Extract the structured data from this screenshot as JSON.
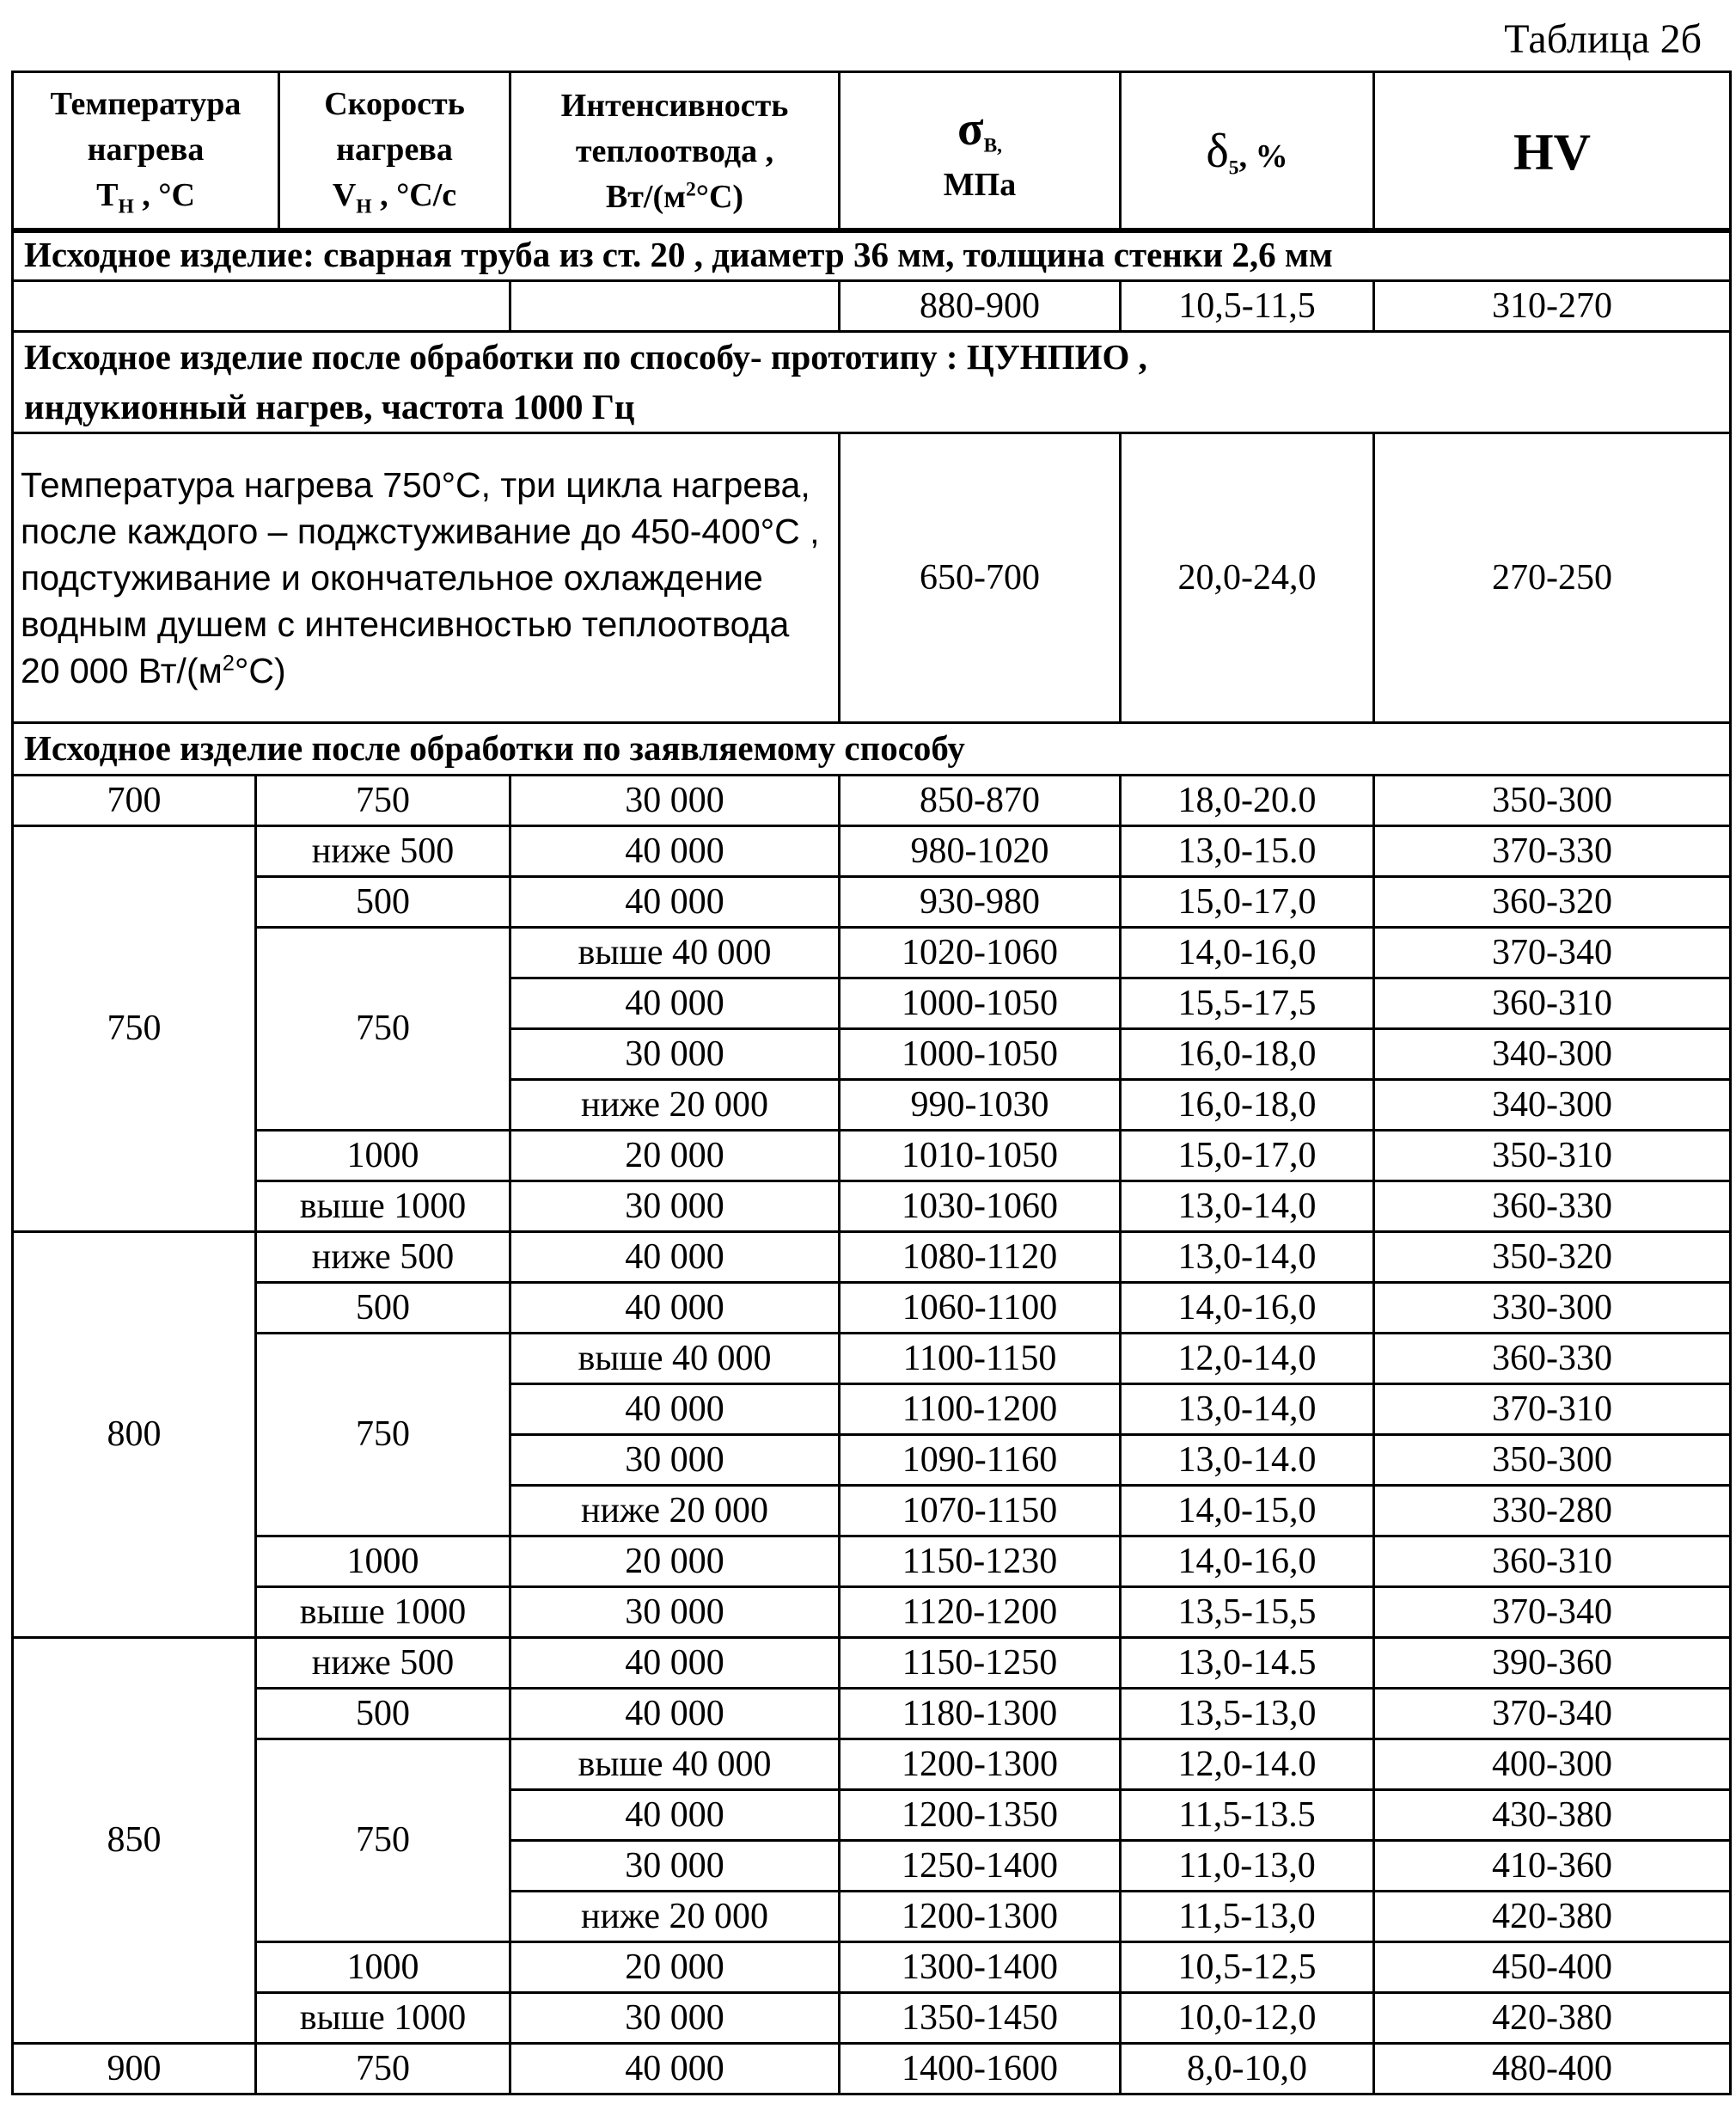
{
  "caption": "Таблица 2б",
  "header": {
    "temp": {
      "l1": "Температура",
      "l2": "нагрева",
      "main": "Т",
      "sub": "Н",
      "rest": " , °С"
    },
    "speed": {
      "l1": "Скорость",
      "l2": "нагрева",
      "main": "V",
      "sub": "Н",
      "rest": " , °С/с"
    },
    "intensity": {
      "l1": "Интенсивность",
      "l2": "теплоотвода ,",
      "main": "Вт/(м",
      "sup": "2",
      "rest": "°С)"
    },
    "sigma": {
      "main": "σ",
      "sub": "В,",
      "l2": "МПа"
    },
    "delta": {
      "main": "δ",
      "sub": "5",
      "rest": ", %"
    },
    "hv": "HV"
  },
  "section1": {
    "title": "Исходное изделие: сварная труба из ст. 20 ,  диаметр 36 мм,  толщина стенки 2,6 мм",
    "values": [
      "880-900",
      "10,5-11,5",
      "310-270"
    ]
  },
  "section2": {
    "title_l1": "Исходное изделие после обработки по способу- прототипу :  ЦУНПИО ,",
    "title_l2": "индукионный нагрев, частота  1000 Гц",
    "desc": "Температура нагрева 750°С, три цикла нагрева, после каждого – поджстуживание до 450-400°С , подстуживание и окончательное охлаждение водным душем с интенсивностью теплоотвода 20 000 Вт/(м",
    "desc_sup": "2",
    "desc_end": "°С)",
    "values": [
      "650-700",
      "20,0-24,0",
      "270-250"
    ]
  },
  "section3": {
    "title": "Исходное изделие после обработки по заявляемому способу",
    "groups": [
      {
        "temp": "700",
        "speeds": [
          {
            "speed": "750",
            "rows": [
              [
                "30 000",
                "850-870",
                "18,0-20.0",
                "350-300"
              ]
            ]
          }
        ]
      },
      {
        "temp": "750",
        "speeds": [
          {
            "speed": "ниже 500",
            "rows": [
              [
                "40 000",
                "980-1020",
                "13,0-15.0",
                "370-330"
              ]
            ]
          },
          {
            "speed": "500",
            "rows": [
              [
                "40 000",
                "930-980",
                "15,0-17,0",
                "360-320"
              ]
            ]
          },
          {
            "speed": "750",
            "rows": [
              [
                "выше 40 000",
                "1020-1060",
                "14,0-16,0",
                "370-340"
              ],
              [
                "40 000",
                "1000-1050",
                "15,5-17,5",
                "360-310"
              ],
              [
                "30 000",
                "1000-1050",
                "16,0-18,0",
                "340-300"
              ],
              [
                "ниже 20 000",
                "990-1030",
                "16,0-18,0",
                "340-300"
              ]
            ]
          },
          {
            "speed": "1000",
            "rows": [
              [
                "20 000",
                "1010-1050",
                "15,0-17,0",
                "350-310"
              ]
            ]
          },
          {
            "speed": "выше 1000",
            "rows": [
              [
                "30 000",
                "1030-1060",
                "13,0-14,0",
                "360-330"
              ]
            ]
          }
        ]
      },
      {
        "temp": "800",
        "speeds": [
          {
            "speed": "ниже 500",
            "rows": [
              [
                "40 000",
                "1080-1120",
                "13,0-14,0",
                "350-320"
              ]
            ]
          },
          {
            "speed": "500",
            "rows": [
              [
                "40 000",
                "1060-1100",
                "14,0-16,0",
                "330-300"
              ]
            ]
          },
          {
            "speed": "750",
            "rows": [
              [
                "выше 40 000",
                "1100-1150",
                "12,0-14,0",
                "360-330"
              ],
              [
                "40 000",
                "1100-1200",
                "13,0-14,0",
                "370-310"
              ],
              [
                "30 000",
                "1090-1160",
                "13,0-14.0",
                "350-300"
              ],
              [
                "ниже 20 000",
                "1070-1150",
                "14,0-15,0",
                "330-280"
              ]
            ]
          },
          {
            "speed": "1000",
            "rows": [
              [
                "20 000",
                "1150-1230",
                "14,0-16,0",
                "360-310"
              ]
            ]
          },
          {
            "speed": "выше 1000",
            "rows": [
              [
                "30 000",
                "1120-1200",
                "13,5-15,5",
                "370-340"
              ]
            ]
          }
        ]
      },
      {
        "temp": "850",
        "speeds": [
          {
            "speed": "ниже 500",
            "rows": [
              [
                "40 000",
                "1150-1250",
                "13,0-14.5",
                "390-360"
              ]
            ]
          },
          {
            "speed": "500",
            "rows": [
              [
                "40 000",
                "1180-1300",
                "13,5-13,0",
                "370-340"
              ]
            ]
          },
          {
            "speed": "750",
            "rows": [
              [
                "выше 40 000",
                "1200-1300",
                "12,0-14.0",
                "400-300"
              ],
              [
                "40 000",
                "1200-1350",
                "11,5-13.5",
                "430-380"
              ],
              [
                "30 000",
                "1250-1400",
                "11,0-13,0",
                "410-360"
              ],
              [
                "ниже 20 000",
                "1200-1300",
                "11,5-13,0",
                "420-380"
              ]
            ]
          },
          {
            "speed": "1000",
            "rows": [
              [
                "20 000",
                "1300-1400",
                "10,5-12,5",
                "450-400"
              ]
            ]
          },
          {
            "speed": "выше 1000",
            "rows": [
              [
                "30 000",
                "1350-1450",
                "10,0-12,0",
                "420-380"
              ]
            ]
          }
        ]
      },
      {
        "temp": "900",
        "speeds": [
          {
            "speed": "750",
            "rows": [
              [
                "40 000",
                "1400-1600",
                "8,0-10,0",
                "480-400"
              ]
            ]
          }
        ]
      }
    ]
  }
}
